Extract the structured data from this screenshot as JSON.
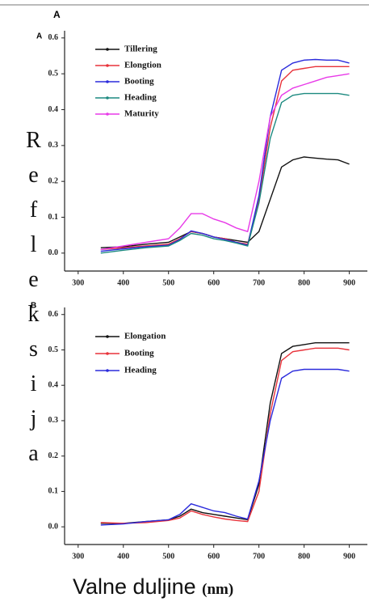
{
  "figure_label": "A",
  "y_label": "Refleksija",
  "x_label": "Valne duljine",
  "x_unit": "(nm)",
  "chart_data": [
    {
      "type": "line",
      "panel_label": "A",
      "x": [
        350,
        400,
        450,
        500,
        525,
        550,
        575,
        600,
        625,
        650,
        675,
        700,
        725,
        750,
        775,
        800,
        825,
        850,
        875,
        900
      ],
      "xlim": [
        270,
        940
      ],
      "xticks": [
        300,
        400,
        500,
        600,
        700,
        800,
        900
      ],
      "ylim": [
        -0.05,
        0.62
      ],
      "yticks": [
        {
          "value": 0,
          "label": "0.0"
        },
        0.1,
        0.2,
        0.3,
        0.4,
        0.5,
        0.6
      ],
      "series": [
        {
          "name": "Tillering",
          "color": "#111111",
          "values": [
            0.015,
            0.018,
            0.025,
            0.03,
            0.045,
            0.06,
            0.055,
            0.045,
            0.04,
            0.035,
            0.03,
            0.06,
            0.15,
            0.24,
            0.26,
            0.268,
            0.265,
            0.262,
            0.26,
            0.248
          ]
        },
        {
          "name": "Elongtion",
          "color": "#e8323a",
          "values": [
            0.01,
            0.015,
            0.02,
            0.025,
            0.04,
            0.06,
            0.055,
            0.045,
            0.04,
            0.03,
            0.025,
            0.15,
            0.35,
            0.48,
            0.51,
            0.515,
            0.52,
            0.52,
            0.52,
            0.52
          ]
        },
        {
          "name": "Booting",
          "color": "#2b2bdc",
          "values": [
            0.005,
            0.012,
            0.018,
            0.022,
            0.038,
            0.062,
            0.055,
            0.045,
            0.038,
            0.03,
            0.022,
            0.16,
            0.38,
            0.51,
            0.53,
            0.538,
            0.54,
            0.538,
            0.538,
            0.53
          ]
        },
        {
          "name": "Heading",
          "color": "#1d8a80",
          "values": [
            0.0,
            0.008,
            0.015,
            0.02,
            0.035,
            0.055,
            0.05,
            0.04,
            0.035,
            0.028,
            0.02,
            0.14,
            0.32,
            0.42,
            0.44,
            0.445,
            0.445,
            0.445,
            0.445,
            0.44
          ]
        },
        {
          "name": "Maturity",
          "color": "#e83ae8",
          "values": [
            0.01,
            0.02,
            0.03,
            0.04,
            0.07,
            0.11,
            0.11,
            0.095,
            0.085,
            0.07,
            0.06,
            0.2,
            0.38,
            0.44,
            0.46,
            0.47,
            0.48,
            0.49,
            0.495,
            0.5
          ]
        }
      ]
    },
    {
      "type": "line",
      "panel_label": "B",
      "x": [
        350,
        400,
        450,
        500,
        525,
        550,
        575,
        600,
        625,
        650,
        675,
        700,
        725,
        750,
        775,
        800,
        825,
        850,
        875,
        900
      ],
      "xlim": [
        270,
        940
      ],
      "xticks": [
        300,
        400,
        500,
        600,
        700,
        800,
        900
      ],
      "ylim": [
        -0.05,
        0.62
      ],
      "yticks": [
        {
          "value": 0,
          "label": "0.0"
        },
        0.1,
        0.2,
        0.3,
        0.4,
        0.5,
        0.6
      ],
      "series": [
        {
          "name": "Elongation",
          "color": "#111111",
          "values": [
            0.01,
            0.01,
            0.015,
            0.02,
            0.03,
            0.05,
            0.04,
            0.035,
            0.03,
            0.025,
            0.02,
            0.12,
            0.35,
            0.49,
            0.51,
            0.515,
            0.52,
            0.52,
            0.52,
            0.52
          ]
        },
        {
          "name": "Booting",
          "color": "#e8323a",
          "values": [
            0.012,
            0.01,
            0.012,
            0.018,
            0.025,
            0.045,
            0.035,
            0.028,
            0.022,
            0.018,
            0.015,
            0.1,
            0.32,
            0.47,
            0.495,
            0.5,
            0.505,
            0.505,
            0.505,
            0.5
          ]
        },
        {
          "name": "Heading",
          "color": "#2b2bdc",
          "values": [
            0.005,
            0.008,
            0.015,
            0.02,
            0.035,
            0.065,
            0.055,
            0.045,
            0.04,
            0.03,
            0.022,
            0.13,
            0.3,
            0.42,
            0.44,
            0.445,
            0.445,
            0.445,
            0.445,
            0.44
          ]
        }
      ]
    }
  ]
}
